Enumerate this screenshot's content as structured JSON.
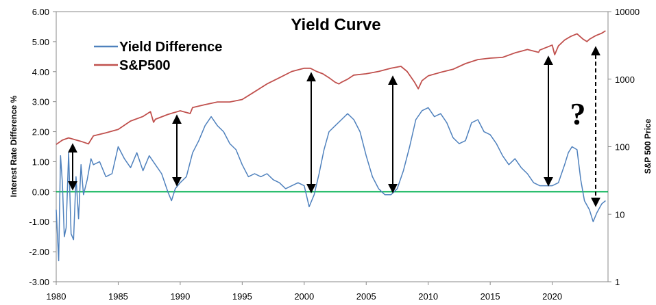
{
  "chart_data": {
    "type": "line",
    "title": "Yield Curve",
    "ylabel_left": "Interest Rate Difference %",
    "ylabel_right": "S&P 500 Price",
    "x_ticks": [
      "1980",
      "1985",
      "1990",
      "1995",
      "2000",
      "2005",
      "2010",
      "2015",
      "2020"
    ],
    "y_left_ticks": [
      "6.00",
      "5.00",
      "4.00",
      "3.00",
      "2.00",
      "1.00",
      "0.00",
      "-1.00",
      "-2.00",
      "-3.00"
    ],
    "y_right_ticks": [
      "10000",
      "1000",
      "100",
      "10",
      "1"
    ],
    "xlim": [
      1980,
      2024.5
    ],
    "ylim_left": [
      -3,
      6
    ],
    "ylim_right": [
      1,
      10000
    ],
    "y_right_scale": "log",
    "legend_position": "top-left",
    "colors": {
      "yield": "#4F81BD",
      "sp500": "#C0504D",
      "zero_line": "#00B050"
    },
    "series": [
      {
        "name": "Yield Difference",
        "axis": "left",
        "x": [
          1980.0,
          1980.2,
          1980.35,
          1980.5,
          1980.65,
          1980.8,
          1981.0,
          1981.2,
          1981.4,
          1981.6,
          1981.8,
          1982.0,
          1982.2,
          1982.5,
          1982.8,
          1983.0,
          1983.5,
          1984.0,
          1984.5,
          1985.0,
          1985.5,
          1986.0,
          1986.5,
          1987.0,
          1987.5,
          1988.0,
          1988.5,
          1989.0,
          1989.3,
          1989.6,
          1990.0,
          1990.5,
          1991.0,
          1991.5,
          1992.0,
          1992.5,
          1993.0,
          1993.5,
          1994.0,
          1994.5,
          1995.0,
          1995.5,
          1996.0,
          1996.5,
          1997.0,
          1997.5,
          1998.0,
          1998.5,
          1999.0,
          1999.5,
          2000.0,
          2000.4,
          2000.8,
          2001.2,
          2001.6,
          2002.0,
          2002.5,
          2003.0,
          2003.5,
          2004.0,
          2004.5,
          2005.0,
          2005.5,
          2006.0,
          2006.5,
          2007.0,
          2007.5,
          2008.0,
          2008.5,
          2009.0,
          2009.5,
          2010.0,
          2010.5,
          2011.0,
          2011.5,
          2012.0,
          2012.5,
          2013.0,
          2013.5,
          2014.0,
          2014.5,
          2015.0,
          2015.5,
          2016.0,
          2016.5,
          2017.0,
          2017.5,
          2018.0,
          2018.5,
          2019.0,
          2019.5,
          2020.0,
          2020.5,
          2021.0,
          2021.3,
          2021.6,
          2022.0,
          2022.3,
          2022.6,
          2023.0,
          2023.3,
          2023.6,
          2024.0,
          2024.3
        ],
        "values": [
          -0.6,
          -2.3,
          1.2,
          0.3,
          -1.5,
          -1.2,
          1.3,
          -1.4,
          -1.6,
          0.5,
          -0.9,
          0.9,
          -0.1,
          0.4,
          1.1,
          0.9,
          1.0,
          0.5,
          0.6,
          1.5,
          1.1,
          0.8,
          1.3,
          0.7,
          1.2,
          0.9,
          0.6,
          0.0,
          -0.3,
          0.1,
          0.3,
          0.5,
          1.3,
          1.7,
          2.2,
          2.5,
          2.2,
          2.0,
          1.6,
          1.4,
          0.9,
          0.5,
          0.6,
          0.5,
          0.6,
          0.4,
          0.3,
          0.1,
          0.2,
          0.3,
          0.2,
          -0.5,
          -0.1,
          0.6,
          1.4,
          2.0,
          2.2,
          2.4,
          2.6,
          2.4,
          2.0,
          1.2,
          0.5,
          0.1,
          -0.1,
          -0.1,
          0.1,
          0.7,
          1.5,
          2.4,
          2.7,
          2.8,
          2.5,
          2.6,
          2.3,
          1.8,
          1.6,
          1.7,
          2.3,
          2.4,
          2.0,
          1.9,
          1.6,
          1.2,
          0.9,
          1.1,
          0.8,
          0.6,
          0.3,
          0.2,
          0.2,
          0.2,
          0.3,
          0.9,
          1.3,
          1.5,
          1.4,
          0.4,
          -0.3,
          -0.6,
          -1.0,
          -0.7,
          -0.4,
          -0.3
        ]
      },
      {
        "name": "S&P500",
        "axis": "right",
        "x": [
          1980.0,
          1980.5,
          1981.0,
          1982.0,
          1982.6,
          1983.0,
          1984.0,
          1985.0,
          1986.0,
          1987.0,
          1987.6,
          1987.85,
          1988.0,
          1989.0,
          1990.0,
          1990.8,
          1991.0,
          1992.0,
          1993.0,
          1994.0,
          1995.0,
          1996.0,
          1997.0,
          1998.0,
          1999.0,
          2000.0,
          2000.5,
          2001.0,
          2001.5,
          2002.0,
          2002.5,
          2002.8,
          2003.0,
          2003.5,
          2004.0,
          2005.0,
          2006.0,
          2007.0,
          2007.8,
          2008.3,
          2008.9,
          2009.2,
          2009.5,
          2010.0,
          2011.0,
          2012.0,
          2013.0,
          2014.0,
          2015.0,
          2016.0,
          2017.0,
          2018.0,
          2018.9,
          2019.0,
          2020.0,
          2020.2,
          2020.5,
          2021.0,
          2021.5,
          2022.0,
          2022.5,
          2022.8,
          2023.0,
          2023.5,
          2024.0,
          2024.3
        ],
        "values": [
          108,
          125,
          135,
          120,
          110,
          145,
          160,
          180,
          240,
          280,
          330,
          230,
          255,
          300,
          340,
          310,
          380,
          420,
          460,
          460,
          500,
          650,
          850,
          1050,
          1300,
          1450,
          1450,
          1300,
          1200,
          1050,
          900,
          850,
          900,
          1000,
          1150,
          1200,
          1300,
          1450,
          1550,
          1300,
          900,
          720,
          950,
          1120,
          1260,
          1400,
          1700,
          1950,
          2050,
          2100,
          2450,
          2750,
          2500,
          2700,
          3200,
          2300,
          3100,
          3800,
          4300,
          4700,
          3900,
          3600,
          3900,
          4400,
          4800,
          5200
        ]
      }
    ],
    "annotations": [
      {
        "text": "?"
      }
    ]
  }
}
